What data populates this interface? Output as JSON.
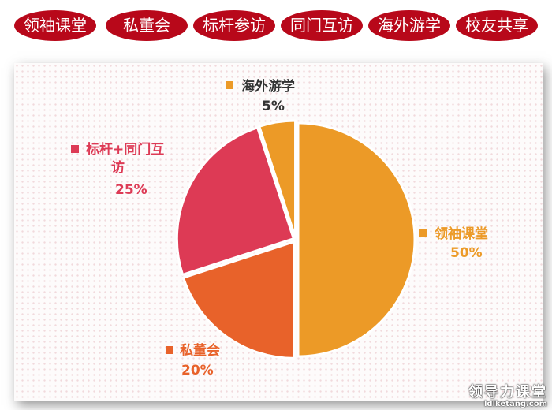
{
  "tabs": [
    {
      "label": "领袖课堂"
    },
    {
      "label": "私董会"
    },
    {
      "label": "标杆参访"
    },
    {
      "label": "同门互访"
    },
    {
      "label": "海外游学"
    },
    {
      "label": "校友共享"
    }
  ],
  "colors": {
    "tab_bg": "#b8081a",
    "tab_text": "#ffffff"
  },
  "chart_data": {
    "type": "pie",
    "title": "",
    "start_angle_deg": 0,
    "direction": "clockwise",
    "slices": [
      {
        "label": "领袖课堂",
        "value": 50,
        "value_label": "50%",
        "color": "#ec9a27"
      },
      {
        "label": "私董会",
        "value": 20,
        "value_label": "20%",
        "color": "#e8622a"
      },
      {
        "label": "标杆+同门互访",
        "value": 25,
        "value_label": "25%",
        "color": "#dd3a55"
      },
      {
        "label": "海外游学",
        "value": 5,
        "value_label": "5%",
        "color": "#ec9a27"
      }
    ]
  },
  "watermark": {
    "main": "领导力课堂",
    "sub": "ldlketang.com"
  }
}
